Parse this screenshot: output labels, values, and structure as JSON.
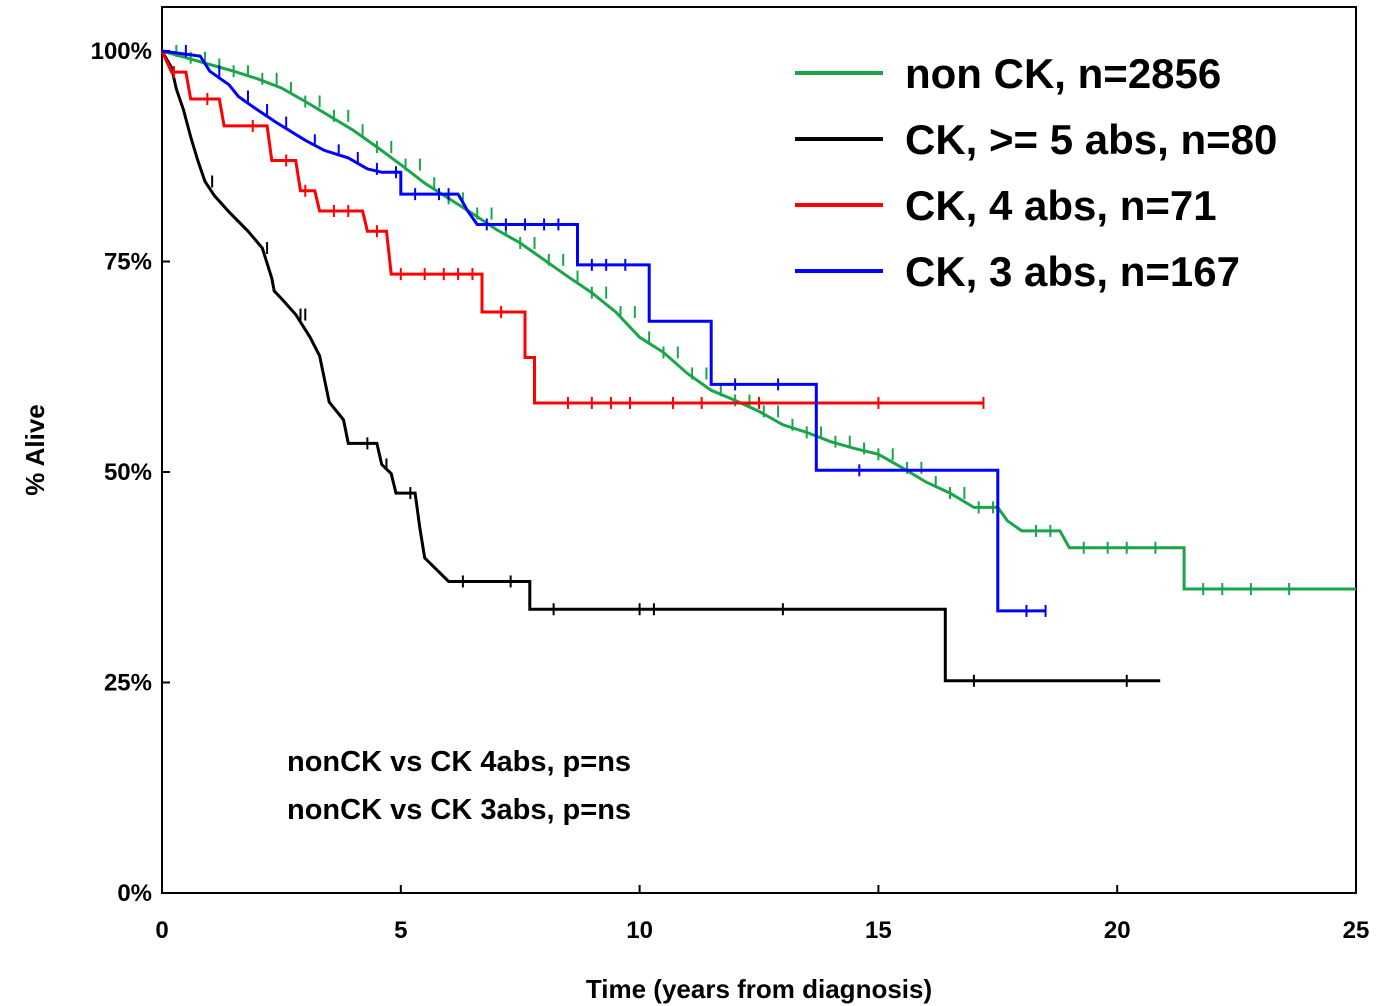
{
  "chart_data": {
    "type": "line",
    "title": "",
    "xlabel": "Time (years from diagnosis)",
    "ylabel": "% Alive",
    "xlim": [
      0,
      25
    ],
    "ylim": [
      0,
      100
    ],
    "x_ticks": [
      0,
      5,
      10,
      15,
      20,
      25
    ],
    "y_ticks": [
      0,
      25,
      50,
      75,
      100
    ],
    "x_tick_labels": [
      "0",
      "5",
      "10",
      "15",
      "20",
      "25"
    ],
    "y_tick_labels": [
      "0%",
      "25%",
      "50%",
      "75%",
      "100%"
    ],
    "grid": false,
    "legend_position": "top-right",
    "annotations": [
      "nonCK vs CK 4abs, p=ns",
      "nonCK vs CK 3abs, p=ns"
    ],
    "series": [
      {
        "name": "non CK, n=2856",
        "color": "#1aa54a",
        "points": [
          [
            0,
            100
          ],
          [
            0.5,
            99.2
          ],
          [
            1,
            98.4
          ],
          [
            1.5,
            97.6
          ],
          [
            2,
            96.7
          ],
          [
            2.5,
            95.6
          ],
          [
            3,
            94
          ],
          [
            3.5,
            92.3
          ],
          [
            4,
            90.6
          ],
          [
            4.5,
            88.6
          ],
          [
            5,
            86.5
          ],
          [
            5.5,
            84.3
          ],
          [
            6,
            82.5
          ],
          [
            6.5,
            80.7
          ],
          [
            7,
            78.8
          ],
          [
            7.5,
            77.2
          ],
          [
            8,
            75.2
          ],
          [
            8.5,
            73.2
          ],
          [
            9,
            71.3
          ],
          [
            9.5,
            69
          ],
          [
            10,
            66
          ],
          [
            10.5,
            64.2
          ],
          [
            11,
            61.7
          ],
          [
            11.5,
            59.7
          ],
          [
            12,
            58.5
          ],
          [
            12.5,
            57.2
          ],
          [
            13,
            55.6
          ],
          [
            13.5,
            54.7
          ],
          [
            14,
            53.6
          ],
          [
            14.5,
            52.8
          ],
          [
            15,
            52.1
          ],
          [
            15.5,
            50.5
          ],
          [
            16,
            48.8
          ],
          [
            16.5,
            47.5
          ],
          [
            17,
            45.8
          ],
          [
            17.5,
            45.8
          ],
          [
            17.7,
            44.2
          ],
          [
            18,
            43
          ],
          [
            18.8,
            43
          ],
          [
            19,
            41
          ],
          [
            21.4,
            41
          ],
          [
            21.4,
            36.1
          ],
          [
            25,
            36.1
          ]
        ],
        "censor_x": [
          0.3,
          0.6,
          0.9,
          1.2,
          1.5,
          1.8,
          2.1,
          2.4,
          2.7,
          3.0,
          3.3,
          3.6,
          3.9,
          4.2,
          4.5,
          4.8,
          5.1,
          5.4,
          5.7,
          6.0,
          6.3,
          6.6,
          6.9,
          7.2,
          7.5,
          7.8,
          8.1,
          8.4,
          8.7,
          9.0,
          9.3,
          9.6,
          9.9,
          10.2,
          10.5,
          10.8,
          11.1,
          11.4,
          11.7,
          12.0,
          12.3,
          12.6,
          12.9,
          13.2,
          13.5,
          13.8,
          14.1,
          14.4,
          14.7,
          15.0,
          15.3,
          15.6,
          15.9,
          16.2,
          16.5,
          16.8,
          17.1,
          17.4,
          18.3,
          18.6,
          19.3,
          19.8,
          20.2,
          20.8,
          21.8,
          22.2,
          22.8,
          23.6
        ]
      },
      {
        "name": "CK, >= 5 abs, n=80",
        "color": "#000000",
        "points": [
          [
            0,
            100
          ],
          [
            0.2,
            98
          ],
          [
            0.3,
            95.5
          ],
          [
            0.45,
            93
          ],
          [
            0.6,
            89.8
          ],
          [
            0.75,
            87
          ],
          [
            0.9,
            84.5
          ],
          [
            1.1,
            82.8
          ],
          [
            1.4,
            80.9
          ],
          [
            1.8,
            78.6
          ],
          [
            2.1,
            76.6
          ],
          [
            2.3,
            73
          ],
          [
            2.35,
            71.5
          ],
          [
            2.5,
            70.6
          ],
          [
            2.8,
            68.7
          ],
          [
            3.1,
            66
          ],
          [
            3.3,
            63.8
          ],
          [
            3.5,
            58.3
          ],
          [
            3.8,
            56.2
          ],
          [
            3.9,
            53.4
          ],
          [
            4.5,
            53.4
          ],
          [
            4.6,
            50.9
          ],
          [
            4.8,
            49.8
          ],
          [
            4.9,
            47.5
          ],
          [
            5.3,
            47.5
          ],
          [
            5.4,
            43.3
          ],
          [
            5.5,
            39.8
          ],
          [
            6,
            37
          ],
          [
            7.7,
            37
          ],
          [
            7.7,
            33.7
          ],
          [
            16.4,
            33.7
          ],
          [
            16.4,
            25.2
          ],
          [
            20.9,
            25.2
          ]
        ],
        "censor_x": [
          1.05,
          2.2,
          2.9,
          3.0,
          4.3,
          4.7,
          5.2,
          6.3,
          7.3,
          8.2,
          10.0,
          10.3,
          13.0,
          17.0,
          20.2
        ]
      },
      {
        "name": "CK, 4 abs, n=71",
        "color": "#ff0000",
        "points": [
          [
            0,
            100
          ],
          [
            0.2,
            97.5
          ],
          [
            0.5,
            97.5
          ],
          [
            0.6,
            94.3
          ],
          [
            1.2,
            94.3
          ],
          [
            1.3,
            91.1
          ],
          [
            2.2,
            91.1
          ],
          [
            2.3,
            87
          ],
          [
            2.8,
            87
          ],
          [
            2.9,
            83.4
          ],
          [
            3.2,
            83.4
          ],
          [
            3.3,
            81
          ],
          [
            4.2,
            81
          ],
          [
            4.3,
            78.6
          ],
          [
            4.7,
            78.6
          ],
          [
            4.8,
            73.5
          ],
          [
            6.7,
            73.5
          ],
          [
            6.7,
            69
          ],
          [
            7.6,
            69
          ],
          [
            7.6,
            63.6
          ],
          [
            7.8,
            63.6
          ],
          [
            7.8,
            58.2
          ],
          [
            17.2,
            58.2
          ]
        ],
        "censor_x": [
          0.25,
          0.95,
          1.9,
          2.6,
          3.0,
          3.6,
          3.9,
          4.5,
          5.0,
          5.5,
          5.9,
          6.2,
          6.5,
          7.1,
          8.5,
          9.0,
          9.4,
          9.8,
          10.7,
          11.3,
          12.5,
          15.0,
          17.2
        ]
      },
      {
        "name": "CK, 3 abs, n=167",
        "color": "#0000ff",
        "points": [
          [
            0,
            100
          ],
          [
            0.8,
            99.4
          ],
          [
            1.0,
            97.6
          ],
          [
            1.4,
            96
          ],
          [
            1.6,
            94.6
          ],
          [
            2,
            93
          ],
          [
            2.4,
            91.5
          ],
          [
            3,
            89.4
          ],
          [
            3.4,
            88.2
          ],
          [
            3.9,
            87.3
          ],
          [
            4.3,
            86
          ],
          [
            4.6,
            85.6
          ],
          [
            5,
            85.6
          ],
          [
            5,
            83
          ],
          [
            5.5,
            83
          ],
          [
            6.2,
            83
          ],
          [
            6.4,
            81
          ],
          [
            6.6,
            79.4
          ],
          [
            8.7,
            79.4
          ],
          [
            8.7,
            74.6
          ],
          [
            10.2,
            74.6
          ],
          [
            10.2,
            67.9
          ],
          [
            11.5,
            67.9
          ],
          [
            11.5,
            60.4
          ],
          [
            13.7,
            60.4
          ],
          [
            13.7,
            50.2
          ],
          [
            17.5,
            50.2
          ],
          [
            17.5,
            33.5
          ],
          [
            18.5,
            33.5
          ]
        ],
        "censor_x": [
          0.5,
          1.2,
          1.8,
          2.2,
          2.6,
          3.2,
          3.7,
          4.1,
          4.5,
          4.9,
          5.3,
          5.8,
          6.0,
          6.8,
          7.2,
          7.6,
          8.0,
          8.3,
          9.0,
          9.3,
          9.7,
          12.0,
          12.9,
          14.6,
          18.1,
          18.5
        ]
      }
    ]
  }
}
